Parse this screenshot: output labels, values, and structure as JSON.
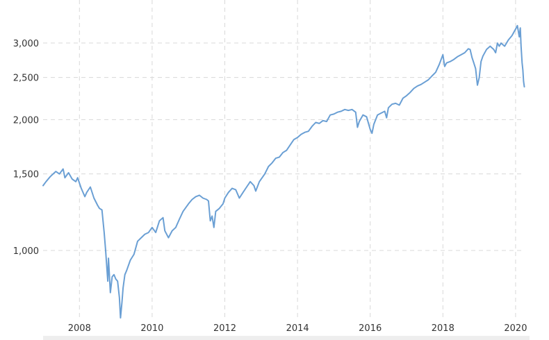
{
  "chart_data": {
    "type": "line",
    "title": "",
    "xlabel": "",
    "ylabel": "",
    "y_scale": "log",
    "grid": true,
    "legend": "none",
    "x_range": [
      2007.0,
      2020.25
    ],
    "y_range": [
      690,
      3400
    ],
    "x_ticks": [
      2008,
      2010,
      2012,
      2014,
      2016,
      2018,
      2020
    ],
    "x_tick_labels": [
      "2008",
      "2010",
      "2012",
      "2014",
      "2016",
      "2018",
      "2020"
    ],
    "y_ticks": [
      1000,
      1500,
      2000,
      2500,
      3000
    ],
    "y_tick_labels": [
      "1,000",
      "1,500",
      "2,000",
      "2,500",
      "3,000"
    ],
    "colors": {
      "line": "#6a9fd4",
      "grid": "#d8d8d8",
      "bottom_bar": "#eeeeee"
    },
    "series": [
      {
        "x": [
          2007.0,
          2007.08,
          2007.2,
          2007.35,
          2007.45,
          2007.55,
          2007.6,
          2007.7,
          2007.8,
          2007.9,
          2007.95,
          2008.05,
          2008.15,
          2008.2,
          2008.3,
          2008.4,
          2008.5,
          2008.55,
          2008.62,
          2008.68,
          2008.72,
          2008.78,
          2008.8,
          2008.85,
          2008.9,
          2008.95,
          2009.0,
          2009.05,
          2009.1,
          2009.13,
          2009.17,
          2009.2,
          2009.25,
          2009.3,
          2009.4,
          2009.5,
          2009.6,
          2009.7,
          2009.8,
          2009.9,
          2010.0,
          2010.1,
          2010.2,
          2010.3,
          2010.35,
          2010.45,
          2010.55,
          2010.65,
          2010.75,
          2010.85,
          2011.0,
          2011.1,
          2011.2,
          2011.3,
          2011.4,
          2011.5,
          2011.55,
          2011.6,
          2011.65,
          2011.7,
          2011.75,
          2011.85,
          2011.95,
          2012.0,
          2012.1,
          2012.2,
          2012.3,
          2012.4,
          2012.5,
          2012.6,
          2012.7,
          2012.8,
          2012.85,
          2012.95,
          2013.1,
          2013.2,
          2013.3,
          2013.4,
          2013.5,
          2013.6,
          2013.7,
          2013.8,
          2013.9,
          2014.0,
          2014.1,
          2014.2,
          2014.3,
          2014.4,
          2014.5,
          2014.6,
          2014.7,
          2014.8,
          2014.9,
          2015.0,
          2015.1,
          2015.2,
          2015.3,
          2015.4,
          2015.5,
          2015.6,
          2015.65,
          2015.7,
          2015.8,
          2015.9,
          2016.0,
          2016.05,
          2016.1,
          2016.2,
          2016.3,
          2016.4,
          2016.45,
          2016.5,
          2016.6,
          2016.7,
          2016.8,
          2016.9,
          2017.0,
          2017.1,
          2017.2,
          2017.3,
          2017.4,
          2017.5,
          2017.6,
          2017.7,
          2017.8,
          2017.9,
          2018.0,
          2018.05,
          2018.1,
          2018.2,
          2018.3,
          2018.4,
          2018.5,
          2018.6,
          2018.7,
          2018.75,
          2018.8,
          2018.85,
          2018.9,
          2018.95,
          2019.0,
          2019.05,
          2019.1,
          2019.2,
          2019.3,
          2019.4,
          2019.45,
          2019.5,
          2019.55,
          2019.6,
          2019.7,
          2019.8,
          2019.9,
          2020.0,
          2020.05,
          2020.1,
          2020.13,
          2020.15,
          2020.18,
          2020.2,
          2020.22,
          2020.24
        ],
        "y": [
          1410,
          1440,
          1480,
          1520,
          1500,
          1540,
          1470,
          1510,
          1460,
          1440,
          1470,
          1390,
          1330,
          1360,
          1400,
          1320,
          1270,
          1250,
          1240,
          1100,
          1000,
          850,
          960,
          800,
          870,
          880,
          860,
          850,
          780,
          700,
          760,
          820,
          880,
          900,
          950,
          980,
          1050,
          1070,
          1090,
          1100,
          1130,
          1100,
          1170,
          1190,
          1110,
          1070,
          1110,
          1130,
          1180,
          1230,
          1280,
          1310,
          1330,
          1340,
          1320,
          1310,
          1300,
          1170,
          1200,
          1130,
          1230,
          1250,
          1280,
          1320,
          1360,
          1390,
          1380,
          1320,
          1360,
          1400,
          1440,
          1410,
          1370,
          1440,
          1500,
          1560,
          1590,
          1630,
          1640,
          1680,
          1700,
          1750,
          1800,
          1820,
          1850,
          1870,
          1880,
          1930,
          1970,
          1960,
          1990,
          1980,
          2050,
          2060,
          2080,
          2090,
          2110,
          2100,
          2110,
          2080,
          1920,
          1980,
          2050,
          2030,
          1900,
          1860,
          1950,
          2050,
          2070,
          2090,
          2020,
          2130,
          2170,
          2180,
          2160,
          2240,
          2270,
          2310,
          2360,
          2390,
          2410,
          2440,
          2470,
          2520,
          2570,
          2680,
          2820,
          2650,
          2700,
          2720,
          2750,
          2790,
          2820,
          2850,
          2910,
          2900,
          2780,
          2700,
          2620,
          2400,
          2500,
          2720,
          2800,
          2900,
          2950,
          2900,
          2850,
          3000,
          2950,
          3000,
          2950,
          3050,
          3120,
          3230,
          3290,
          3100,
          3250,
          2950,
          2700,
          2600,
          2450,
          2380
        ]
      }
    ]
  }
}
